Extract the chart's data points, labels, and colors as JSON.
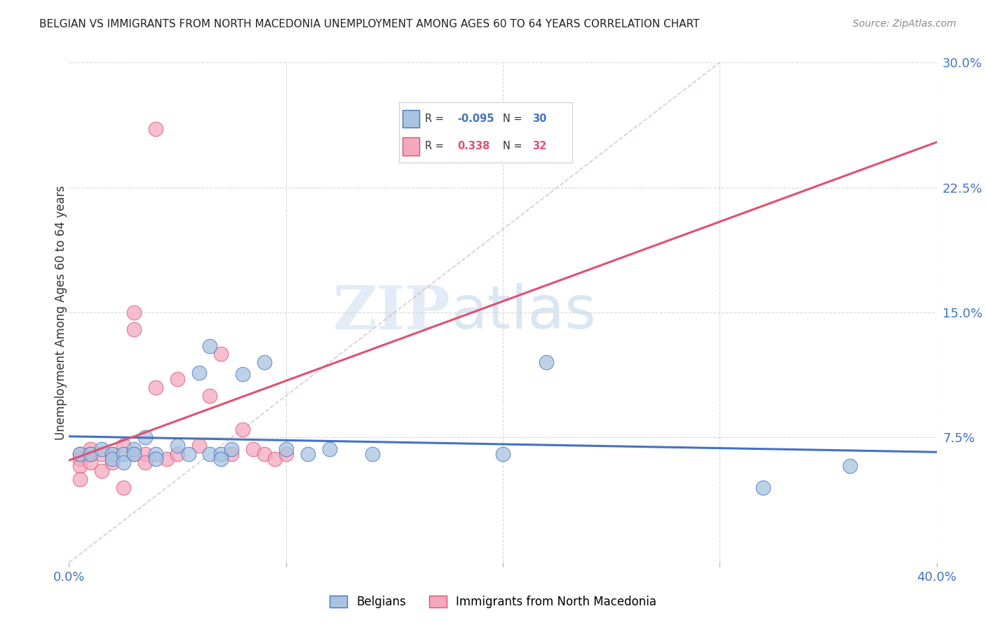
{
  "title": "BELGIAN VS IMMIGRANTS FROM NORTH MACEDONIA UNEMPLOYMENT AMONG AGES 60 TO 64 YEARS CORRELATION CHART",
  "source": "Source: ZipAtlas.com",
  "ylabel": "Unemployment Among Ages 60 to 64 years",
  "xlim": [
    0.0,
    0.4
  ],
  "ylim": [
    -0.01,
    0.31
  ],
  "plot_ylim": [
    0.0,
    0.3
  ],
  "belgian_x": [
    0.005,
    0.01,
    0.015,
    0.02,
    0.02,
    0.025,
    0.025,
    0.03,
    0.03,
    0.035,
    0.04,
    0.04,
    0.05,
    0.055,
    0.06,
    0.065,
    0.065,
    0.07,
    0.07,
    0.075,
    0.08,
    0.09,
    0.1,
    0.11,
    0.12,
    0.14,
    0.2,
    0.22,
    0.32,
    0.36
  ],
  "belgian_y": [
    0.065,
    0.065,
    0.068,
    0.065,
    0.062,
    0.065,
    0.06,
    0.068,
    0.065,
    0.075,
    0.065,
    0.062,
    0.07,
    0.065,
    0.114,
    0.13,
    0.065,
    0.065,
    0.062,
    0.068,
    0.113,
    0.12,
    0.068,
    0.065,
    0.068,
    0.065,
    0.065,
    0.12,
    0.045,
    0.058
  ],
  "immigrant_x": [
    0.005,
    0.005,
    0.005,
    0.005,
    0.01,
    0.01,
    0.01,
    0.015,
    0.015,
    0.02,
    0.02,
    0.025,
    0.025,
    0.03,
    0.03,
    0.03,
    0.035,
    0.035,
    0.04,
    0.04,
    0.045,
    0.05,
    0.05,
    0.06,
    0.065,
    0.07,
    0.075,
    0.08,
    0.085,
    0.09,
    0.095,
    0.1
  ],
  "immigrant_y": [
    0.065,
    0.062,
    0.058,
    0.05,
    0.068,
    0.065,
    0.06,
    0.065,
    0.055,
    0.065,
    0.06,
    0.07,
    0.045,
    0.14,
    0.15,
    0.065,
    0.065,
    0.06,
    0.26,
    0.105,
    0.062,
    0.11,
    0.065,
    0.07,
    0.1,
    0.125,
    0.065,
    0.08,
    0.068,
    0.065,
    0.062,
    0.065
  ],
  "belgian_color": "#a8c4e0",
  "immigrant_color": "#f4a8c0",
  "belgian_line_color": "#4472c4",
  "immigrant_line_color": "#e05070",
  "belgian_R": -0.095,
  "belgian_N": 30,
  "immigrant_R": 0.338,
  "immigrant_N": 32,
  "watermark_zip": "ZIP",
  "watermark_atlas": "atlas",
  "background_color": "#ffffff",
  "grid_color": "#d8d8d8",
  "axis_label_color": "#4472c4",
  "title_color": "#222222",
  "source_color": "#888888"
}
